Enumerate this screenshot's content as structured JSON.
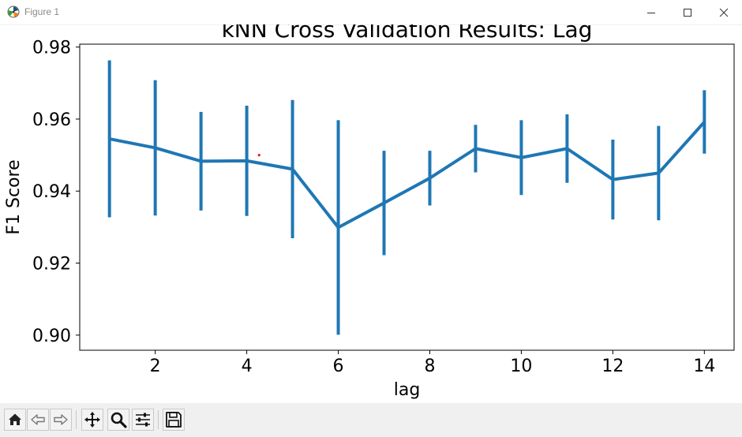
{
  "window": {
    "title": "Figure 1"
  },
  "toolbar": {
    "buttons": [
      "home-icon",
      "back-icon",
      "forward-icon",
      "pan-icon",
      "zoom-icon",
      "configure-icon",
      "save-icon"
    ]
  },
  "colors": {
    "series": "#1f77b4",
    "marker": "#e31a1c"
  },
  "chart_data": {
    "type": "line",
    "title": "kNN Cross Validation Results: Lag",
    "xlabel": "lag",
    "ylabel": "F1 Score",
    "xlim": [
      0.35,
      14.65
    ],
    "ylim": [
      0.8958,
      0.9808
    ],
    "xticks": [
      2,
      4,
      6,
      8,
      10,
      12,
      14
    ],
    "xtick_labels": [
      "2",
      "4",
      "6",
      "8",
      "10",
      "12",
      "14"
    ],
    "yticks": [
      0.9,
      0.92,
      0.94,
      0.96,
      0.98
    ],
    "ytick_labels": [
      "0.90",
      "0.92",
      "0.94",
      "0.96",
      "0.98"
    ],
    "grid": false,
    "series": [
      {
        "name": "F1 Score",
        "x": [
          1,
          2,
          3,
          4,
          5,
          6,
          7,
          8,
          9,
          10,
          11,
          12,
          13,
          14
        ],
        "y": [
          0.9545,
          0.952,
          0.9483,
          0.9484,
          0.9461,
          0.9299,
          0.9367,
          0.9436,
          0.9518,
          0.9493,
          0.9518,
          0.9432,
          0.945,
          0.9592
        ],
        "yerr": [
          0.0218,
          0.0188,
          0.0137,
          0.0153,
          0.0192,
          0.0298,
          0.0145,
          0.0076,
          0.0066,
          0.0104,
          0.0095,
          0.0111,
          0.0131,
          0.0088
        ]
      }
    ],
    "annotations": [
      {
        "type": "point",
        "x": 4.27,
        "y": 0.95
      }
    ]
  }
}
